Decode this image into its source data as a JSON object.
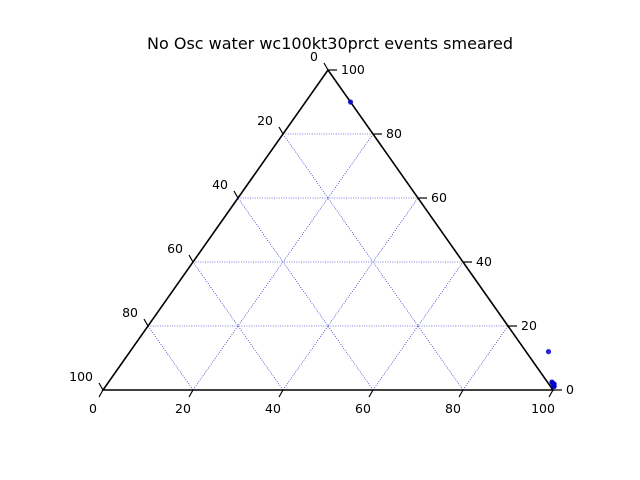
{
  "chart_data": {
    "type": "scatter",
    "subtype": "ternary",
    "title": "No Osc water wc100kt30prct events smeared",
    "range": [
      0,
      100
    ],
    "grid": true,
    "grid_step": 20,
    "grid_color": "#0000cc",
    "frame_color": "#000000",
    "point_color": "#0000cc",
    "tick_labels": {
      "left": [
        "0",
        "20",
        "40",
        "60",
        "80",
        "100"
      ],
      "right": [
        "0",
        "20",
        "40",
        "60",
        "80",
        "100"
      ],
      "bottom": [
        "0",
        "20",
        "40",
        "60",
        "80",
        "100"
      ]
    },
    "points": [
      {
        "bottom": 10,
        "right": 90
      },
      {
        "bottom": 93,
        "right": 12
      },
      {
        "bottom": 98.5,
        "right": 2.5
      },
      {
        "bottom": 98.8,
        "right": 2.2
      },
      {
        "bottom": 99,
        "right": 2
      },
      {
        "bottom": 99.2,
        "right": 1.8
      },
      {
        "bottom": 99.4,
        "right": 1.5
      },
      {
        "bottom": 99.6,
        "right": 1.3
      },
      {
        "bottom": 99.3,
        "right": 1.9
      },
      {
        "bottom": 99.7,
        "right": 1.1
      }
    ]
  }
}
